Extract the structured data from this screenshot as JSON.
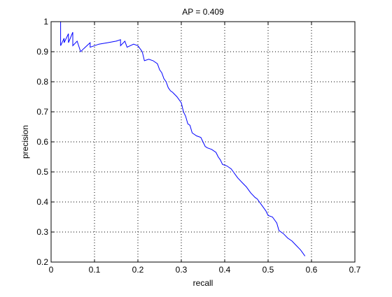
{
  "chart_data": {
    "type": "line",
    "title": "AP = 0.409",
    "xlabel": "recall",
    "ylabel": "precision",
    "xlim": [
      0,
      0.7
    ],
    "ylim": [
      0.2,
      1
    ],
    "grid": true,
    "x_ticks": [
      "0",
      "0.1",
      "0.2",
      "0.3",
      "0.4",
      "0.5",
      "0.6",
      "0.7"
    ],
    "y_ticks": [
      "0.2",
      "0.3",
      "0.4",
      "0.5",
      "0.6",
      "0.7",
      "0.8",
      "0.9",
      "1"
    ],
    "line_color": "#0000ff",
    "series": [
      {
        "values": [
          [
            0.022,
            1.0
          ],
          [
            0.022,
            0.92
          ],
          [
            0.03,
            0.945
          ],
          [
            0.03,
            0.93
          ],
          [
            0.04,
            0.96
          ],
          [
            0.04,
            0.93
          ],
          [
            0.05,
            0.965
          ],
          [
            0.05,
            0.92
          ],
          [
            0.06,
            0.935
          ],
          [
            0.068,
            0.9
          ],
          [
            0.075,
            0.91
          ],
          [
            0.09,
            0.93
          ],
          [
            0.09,
            0.915
          ],
          [
            0.11,
            0.925
          ],
          [
            0.13,
            0.93
          ],
          [
            0.15,
            0.935
          ],
          [
            0.16,
            0.94
          ],
          [
            0.16,
            0.92
          ],
          [
            0.17,
            0.935
          ],
          [
            0.175,
            0.915
          ],
          [
            0.19,
            0.925
          ],
          [
            0.2,
            0.92
          ],
          [
            0.205,
            0.91
          ],
          [
            0.21,
            0.9
          ],
          [
            0.215,
            0.87
          ],
          [
            0.225,
            0.875
          ],
          [
            0.235,
            0.87
          ],
          [
            0.245,
            0.86
          ],
          [
            0.25,
            0.84
          ],
          [
            0.255,
            0.83
          ],
          [
            0.26,
            0.81
          ],
          [
            0.265,
            0.8
          ],
          [
            0.27,
            0.78
          ],
          [
            0.275,
            0.77
          ],
          [
            0.28,
            0.765
          ],
          [
            0.29,
            0.75
          ],
          [
            0.3,
            0.73
          ],
          [
            0.305,
            0.7
          ],
          [
            0.31,
            0.685
          ],
          [
            0.315,
            0.66
          ],
          [
            0.32,
            0.655
          ],
          [
            0.325,
            0.63
          ],
          [
            0.335,
            0.62
          ],
          [
            0.345,
            0.615
          ],
          [
            0.35,
            0.6
          ],
          [
            0.355,
            0.585
          ],
          [
            0.36,
            0.58
          ],
          [
            0.37,
            0.575
          ],
          [
            0.38,
            0.565
          ],
          [
            0.385,
            0.55
          ],
          [
            0.39,
            0.54
          ],
          [
            0.395,
            0.525
          ],
          [
            0.405,
            0.52
          ],
          [
            0.415,
            0.51
          ],
          [
            0.42,
            0.5
          ],
          [
            0.425,
            0.49
          ],
          [
            0.43,
            0.48
          ],
          [
            0.44,
            0.465
          ],
          [
            0.45,
            0.45
          ],
          [
            0.455,
            0.44
          ],
          [
            0.46,
            0.43
          ],
          [
            0.47,
            0.415
          ],
          [
            0.475,
            0.41
          ],
          [
            0.48,
            0.4
          ],
          [
            0.485,
            0.39
          ],
          [
            0.49,
            0.38
          ],
          [
            0.495,
            0.37
          ],
          [
            0.5,
            0.355
          ],
          [
            0.51,
            0.35
          ],
          [
            0.52,
            0.33
          ],
          [
            0.525,
            0.305
          ],
          [
            0.535,
            0.295
          ],
          [
            0.545,
            0.28
          ],
          [
            0.555,
            0.27
          ],
          [
            0.565,
            0.255
          ],
          [
            0.575,
            0.24
          ],
          [
            0.585,
            0.22
          ]
        ]
      }
    ]
  }
}
